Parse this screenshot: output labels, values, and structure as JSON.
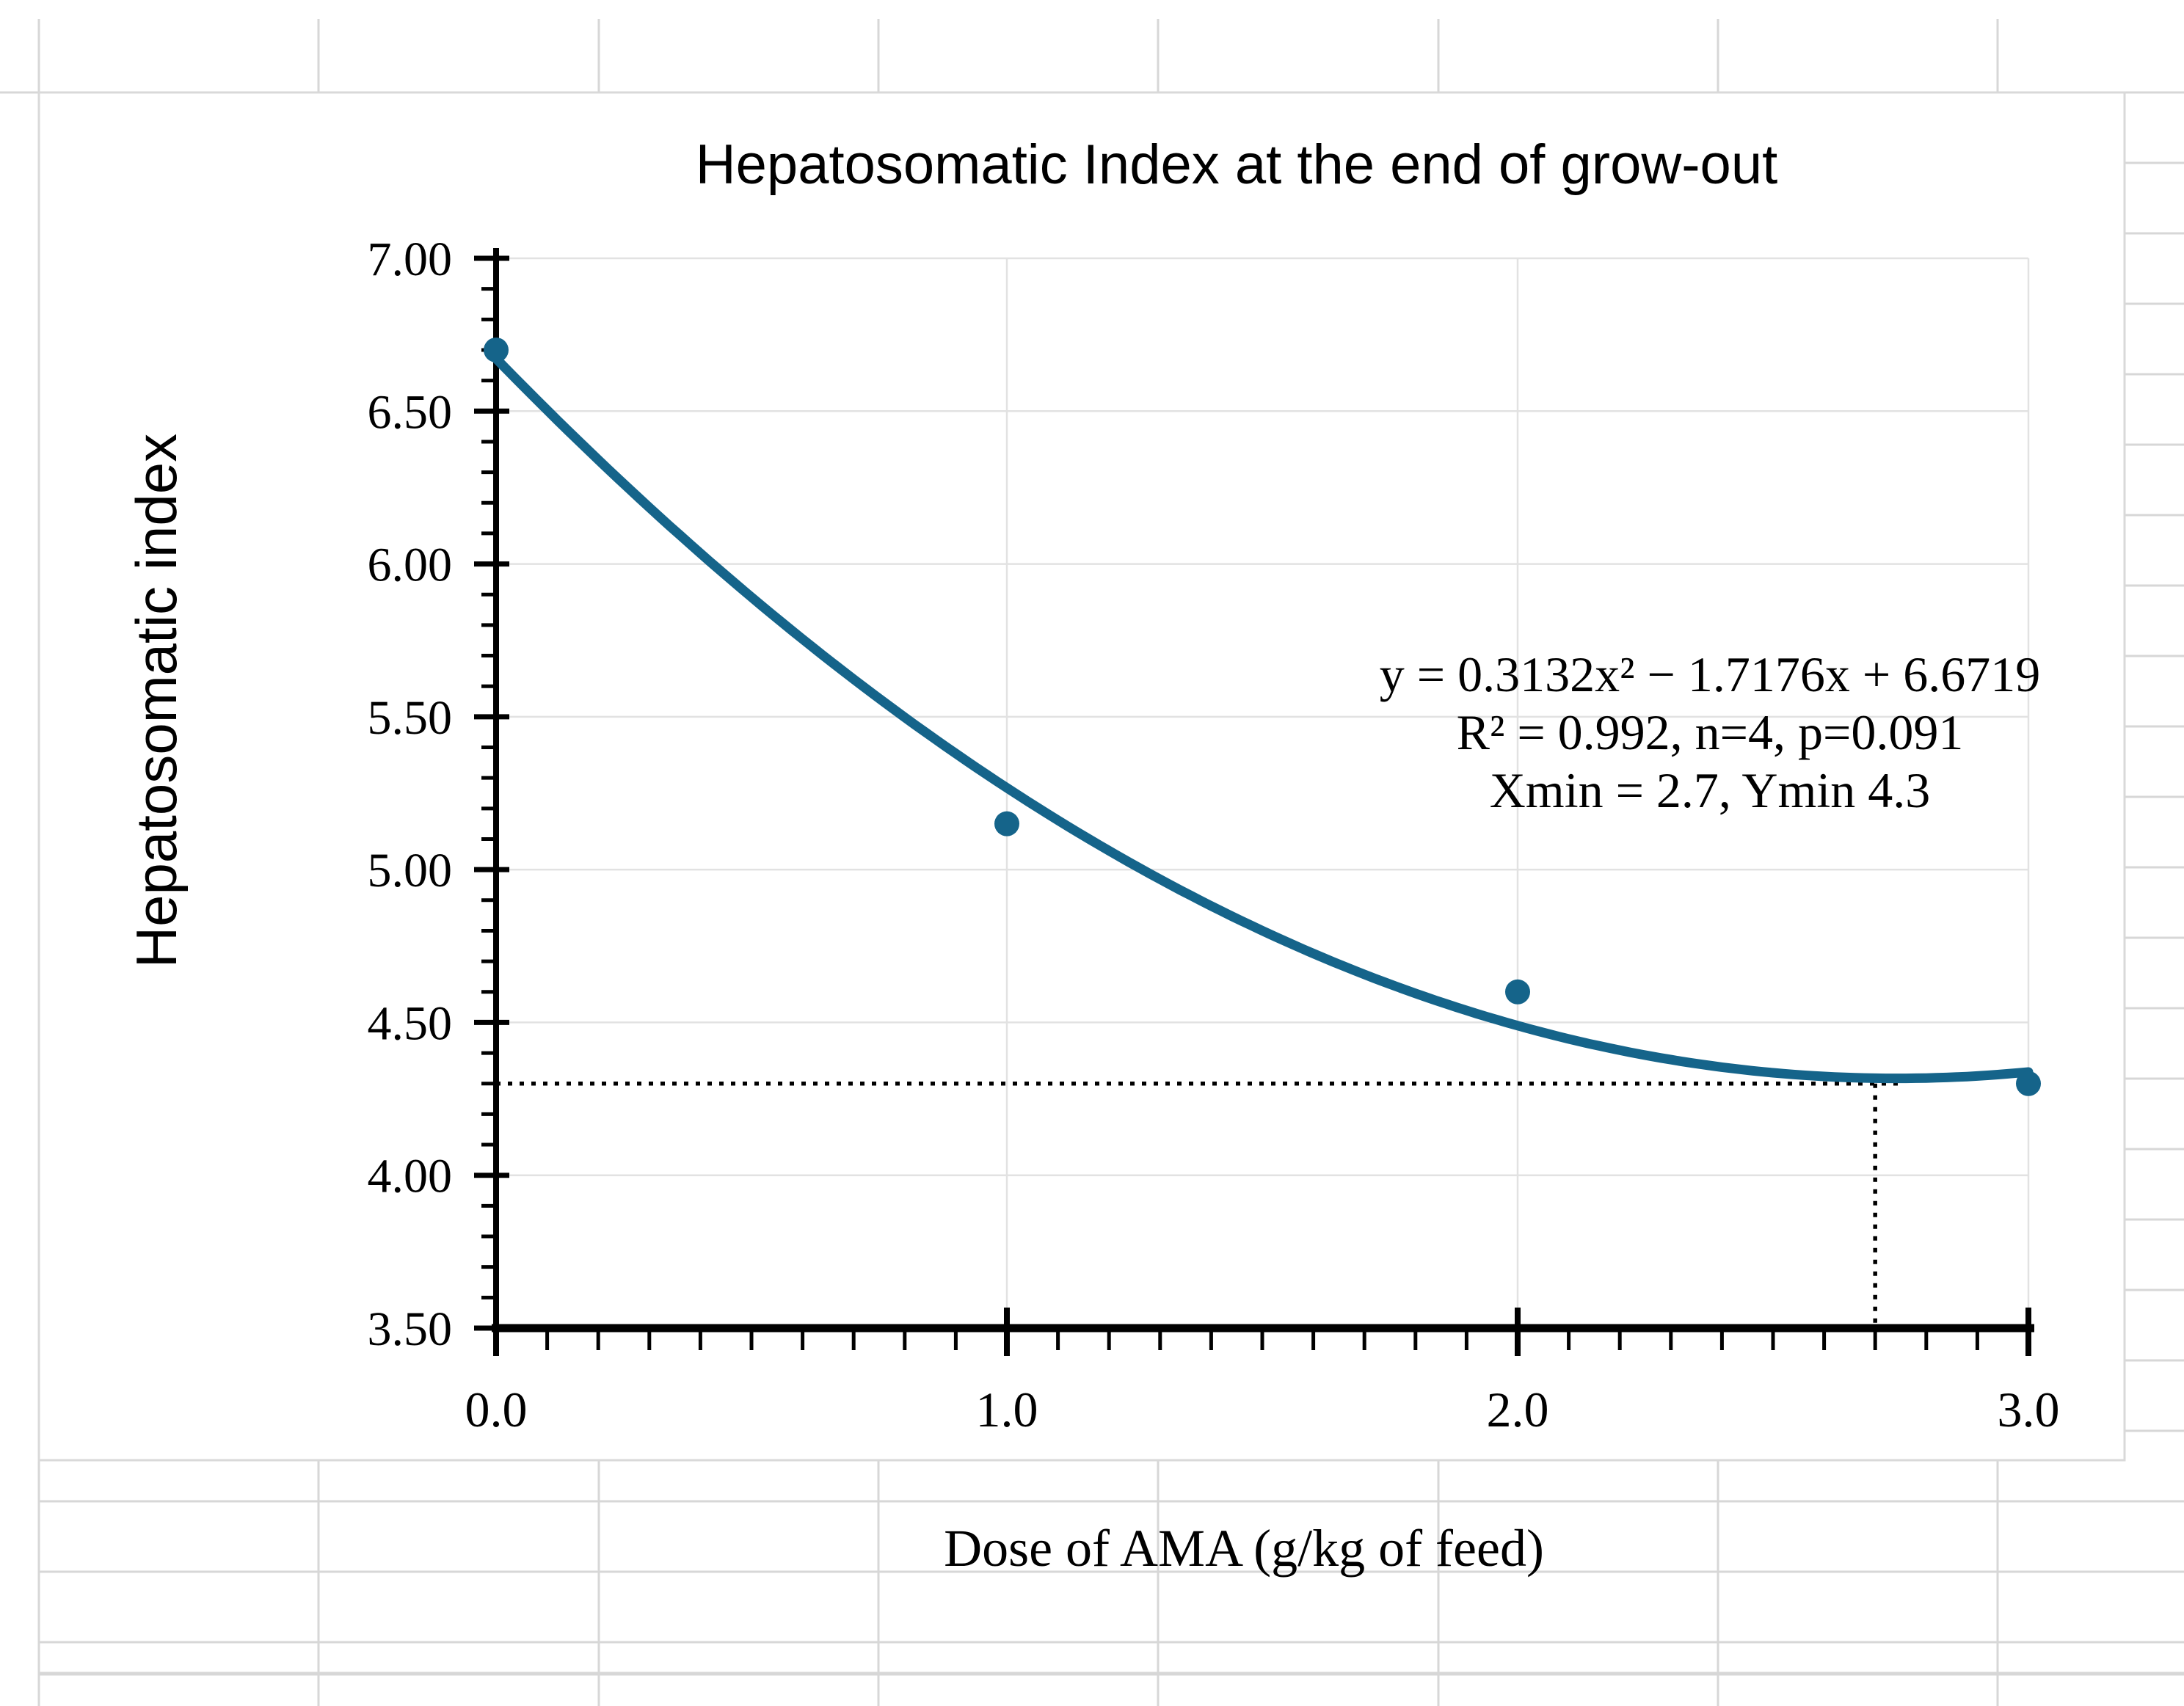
{
  "colors": {
    "accent_teal": "#15648A",
    "sheet_grid_gray": "#D7D7D7",
    "plot_grid_gray": "#E2E2E2",
    "chart_border_gray": "#D9D9D9",
    "axis_black": "#000000",
    "chart_bg": "#FFFFFF"
  },
  "chart_data": {
    "type": "scatter",
    "title": "Hepatosomatic Index at the end of grow-out",
    "xlabel": "Dose of AMA (g/kg of feed)",
    "ylabel": "Hepatosomatic index",
    "xlim": [
      0.0,
      3.0
    ],
    "ylim": [
      3.5,
      7.0
    ],
    "grid": "major",
    "legend_position": "none",
    "x_ticks": [
      {
        "v": 0.0,
        "label": "0.0"
      },
      {
        "v": 1.0,
        "label": "1.0"
      },
      {
        "v": 2.0,
        "label": "2.0"
      },
      {
        "v": 3.0,
        "label": "3.0"
      }
    ],
    "y_ticks": [
      {
        "v": 3.5,
        "label": "3.50"
      },
      {
        "v": 4.0,
        "label": "4.00"
      },
      {
        "v": 4.5,
        "label": "4.50"
      },
      {
        "v": 5.0,
        "label": "5.00"
      },
      {
        "v": 5.5,
        "label": "5.50"
      },
      {
        "v": 6.0,
        "label": "6.00"
      },
      {
        "v": 6.5,
        "label": "6.50"
      },
      {
        "v": 7.0,
        "label": "7.00"
      }
    ],
    "minor_tick_step": 0.1,
    "series": [
      {
        "name": "Hepatosomatic index",
        "marker": "circle",
        "color": "#15648A",
        "points": [
          {
            "x": 0.0,
            "y": 6.7
          },
          {
            "x": 1.0,
            "y": 5.15
          },
          {
            "x": 2.0,
            "y": 4.6
          },
          {
            "x": 3.0,
            "y": 4.3
          }
        ]
      }
    ],
    "trendline": {
      "kind": "polynomial",
      "degree": 2,
      "a": 0.3132,
      "b": -1.7176,
      "c": 6.6719,
      "color": "#15648A"
    },
    "annotation": [
      "y = 0.3132x² − 1.7176x + 6.6719",
      "R² = 0.992, n=4, p=0.091",
      "Xmin = 2.7, Ymin 4.3"
    ],
    "guides": {
      "x_at_min": 2.7,
      "y_min": 4.3
    }
  }
}
